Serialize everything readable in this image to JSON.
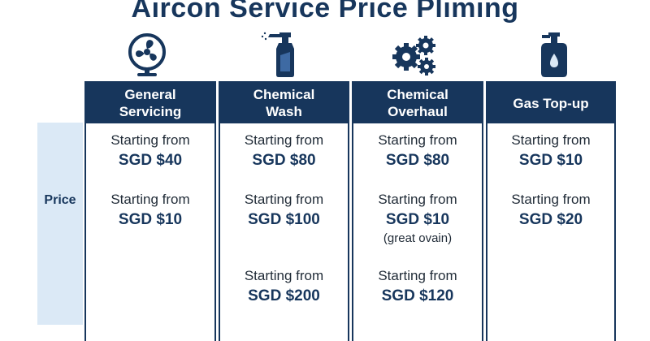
{
  "title": "Aircon Service Price Pliming",
  "row_label": "Price",
  "columns": [
    {
      "name": "General\nServicing",
      "icon": "fan-icon",
      "entries": [
        {
          "prefix": "Starting from",
          "amount": "SGD $40",
          "note": ""
        },
        {
          "prefix": "Starting from",
          "amount": "SGD $10",
          "note": ""
        }
      ]
    },
    {
      "name": "Chemical\nWash",
      "icon": "spray-bottle-icon",
      "entries": [
        {
          "prefix": "Starting from",
          "amount": "SGD $80",
          "note": ""
        },
        {
          "prefix": "Starting from",
          "amount": "SGD $100",
          "note": ""
        },
        {
          "prefix": "Starting from",
          "amount": "SGD $200",
          "note": ""
        }
      ]
    },
    {
      "name": "Chemical\nOverhaul",
      "icon": "gears-icon",
      "entries": [
        {
          "prefix": "Starting from",
          "amount": "SGD $80",
          "note": ""
        },
        {
          "prefix": "Starting from",
          "amount": "SGD $10",
          "note": "(great ovain)"
        },
        {
          "prefix": "Starting from",
          "amount": "SGD $120",
          "note": ""
        }
      ]
    },
    {
      "name": "Gas Top-up",
      "icon": "gas-cylinder-icon",
      "entries": [
        {
          "prefix": "Starting from",
          "amount": "SGD $10",
          "note": ""
        },
        {
          "prefix": "Starting from",
          "amount": "SGD $20",
          "note": ""
        }
      ]
    }
  ],
  "colors": {
    "primary": "#17365c",
    "label_band": "#dbe9f6",
    "text": "#1f2a36"
  }
}
